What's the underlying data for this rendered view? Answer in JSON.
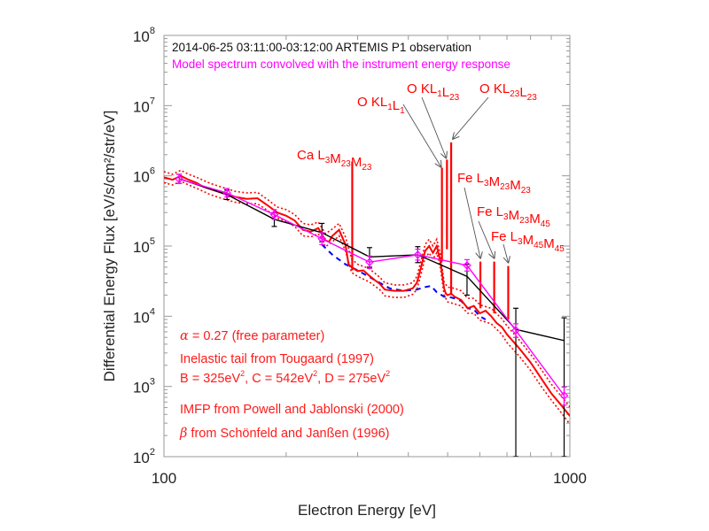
{
  "chart_data": {
    "type": "line",
    "title": "2014-06-25 03:11:00-03:12:00 ARTEMIS P1 observation",
    "subtitle": "Model spectrum convolved with the instrument energy response",
    "xlabel": "Electron Energy [eV]",
    "ylabel": "Differential Energy Flux [eV/s/cm²/str/eV]",
    "xscale": "log",
    "yscale": "log",
    "xlim": [
      100,
      1000
    ],
    "ylim": [
      100,
      100000000
    ],
    "grid": false,
    "x_ticks": [
      {
        "value": 100,
        "label": "100"
      },
      {
        "value": 1000,
        "label": "1000"
      }
    ],
    "y_ticks": [
      {
        "value": 100,
        "base": "10",
        "exp": "2"
      },
      {
        "value": 1000,
        "base": "10",
        "exp": "3"
      },
      {
        "value": 10000,
        "base": "10",
        "exp": "4"
      },
      {
        "value": 100000,
        "base": "10",
        "exp": "5"
      },
      {
        "value": 1000000,
        "base": "10",
        "exp": "6"
      },
      {
        "value": 10000000,
        "base": "10",
        "exp": "7"
      },
      {
        "value": 100000000,
        "base": "10",
        "exp": "8"
      }
    ],
    "colors": {
      "observation": "#000000",
      "model_convolved": "#ff00ff",
      "model": "#ff0000",
      "model_bounds": "#ff0000",
      "background": "#0000ff",
      "annotations": "#ff0000"
    },
    "series": [
      {
        "name": "ARTEMIS P1 observation",
        "style": "line-errorbar",
        "x": [
          109,
          143,
          187,
          245,
          321,
          422,
          558,
          736,
          968
        ],
        "y": [
          910000,
          540000,
          240000,
          155000,
          70000,
          75000,
          37000,
          6500,
          4500
        ],
        "err_low": [
          780000,
          460000,
          190000,
          115000,
          50000,
          58000,
          20000,
          100,
          100
        ],
        "err_high": [
          1050000,
          630000,
          300000,
          210000,
          95000,
          98000,
          55000,
          13000,
          9500
        ]
      },
      {
        "name": "Model spectrum convolved with the instrument energy response",
        "style": "line-diamond-errorbar",
        "x": [
          109,
          143,
          187,
          245,
          321,
          422,
          558,
          736,
          968
        ],
        "y": [
          900000,
          570000,
          280000,
          127000,
          59000,
          75000,
          53000,
          6300,
          740
        ],
        "err_low": [
          780000,
          500000,
          240000,
          105000,
          48000,
          63000,
          44000,
          5000,
          540
        ],
        "err_high": [
          1050000,
          660000,
          330000,
          155000,
          72000,
          90000,
          64000,
          7800,
          980
        ]
      },
      {
        "name": "Model spectrum",
        "style": "solid",
        "x": [
          100,
          105,
          110,
          115,
          120,
          125,
          130,
          140,
          150,
          160,
          170,
          180,
          190,
          200,
          210,
          220,
          230,
          240,
          250,
          255,
          260,
          270,
          280,
          285,
          290,
          300,
          310,
          320,
          330,
          340,
          350,
          370,
          390,
          410,
          420,
          430,
          440,
          450,
          460,
          470,
          480,
          490,
          495,
          500,
          510,
          520,
          540,
          560,
          580,
          600,
          620,
          640,
          660,
          680,
          700,
          750,
          800,
          850,
          900,
          950,
          1000
        ],
        "y": [
          950000,
          880000,
          1000000,
          880000,
          800000,
          700000,
          650000,
          560000,
          500000,
          470000,
          480000,
          380000,
          300000,
          270000,
          230000,
          170000,
          160000,
          180000,
          120000,
          115000,
          140000,
          170000,
          105000,
          55000,
          50000,
          44000,
          45000,
          38000,
          33000,
          29000,
          24000,
          23000,
          23000,
          25000,
          30000,
          50000,
          85000,
          100000,
          80000,
          100000,
          60000,
          25000,
          21000,
          20000,
          21000,
          19000,
          17000,
          13000,
          14000,
          11000,
          12000,
          10000,
          8000,
          7000,
          5500,
          3500,
          2200,
          1300,
          800,
          550,
          380
        ]
      },
      {
        "name": "Model upper bound",
        "style": "dotted",
        "x": [
          100,
          105,
          110,
          115,
          120,
          130,
          140,
          150,
          160,
          170,
          180,
          190,
          200,
          210,
          220,
          230,
          240,
          250,
          260,
          270,
          280,
          290,
          300,
          320,
          340,
          350,
          370,
          390,
          410,
          420,
          430,
          440,
          450,
          460,
          470,
          480,
          490,
          500,
          520,
          540,
          560,
          580,
          600,
          640,
          680,
          700,
          750,
          800,
          850,
          900,
          950,
          1000
        ],
        "y": [
          1150000,
          1050000,
          1200000,
          1050000,
          960000,
          780000,
          680000,
          600000,
          570000,
          580000,
          460000,
          360000,
          330000,
          280000,
          210000,
          200000,
          220000,
          150000,
          175000,
          210000,
          135000,
          65000,
          55000,
          48000,
          36000,
          30000,
          28000,
          28000,
          30000,
          37000,
          62000,
          105000,
          125000,
          100000,
          125000,
          75000,
          31000,
          26000,
          25000,
          23000,
          18000,
          18000,
          14500,
          13000,
          9200,
          7300,
          4600,
          2900,
          1750,
          1080,
          740,
          510
        ]
      },
      {
        "name": "Model lower bound",
        "style": "dotted",
        "x": [
          100,
          105,
          110,
          115,
          120,
          130,
          140,
          150,
          160,
          170,
          180,
          190,
          200,
          210,
          220,
          230,
          240,
          250,
          260,
          270,
          280,
          290,
          300,
          320,
          340,
          350,
          370,
          390,
          410,
          420,
          430,
          440,
          450,
          460,
          470,
          480,
          490,
          500,
          520,
          540,
          560,
          580,
          600,
          640,
          680,
          700,
          750,
          800,
          850,
          900,
          950,
          1000
        ],
        "y": [
          800000,
          740000,
          840000,
          740000,
          670000,
          540000,
          470000,
          420000,
          400000,
          400000,
          320000,
          250000,
          225000,
          190000,
          140000,
          135000,
          150000,
          98000,
          115000,
          140000,
          85000,
          42000,
          37000,
          31000,
          24000,
          19500,
          18500,
          18500,
          20500,
          24000,
          40000,
          68000,
          80000,
          65000,
          80000,
          48000,
          20000,
          16000,
          15000,
          14000,
          11000,
          11000,
          8800,
          7800,
          5500,
          4200,
          2700,
          1700,
          1000,
          640,
          430,
          290
        ]
      },
      {
        "name": "Background (inelastic tail)",
        "style": "dashed",
        "x": [
          245,
          260,
          280,
          300,
          330,
          360,
          390,
          420,
          440,
          455,
          470,
          490,
          500,
          520,
          540,
          560,
          580,
          600,
          620
        ],
        "y": [
          105000,
          75000,
          55000,
          45000,
          33000,
          25000,
          23000,
          24000,
          26000,
          27000,
          22000,
          19000,
          19000,
          18000,
          16500,
          13000,
          12500,
          10000,
          9000
        ]
      },
      {
        "name": "Emission lines",
        "style": "spikes",
        "x": [
          291,
          484,
          498,
          510,
          602,
          651,
          705
        ],
        "y": [
          1600000,
          1300000,
          1700000,
          3000000,
          60000,
          60000,
          52000
        ],
        "base": [
          45000,
          60000,
          90000,
          20000,
          13000,
          11000,
          9000
        ]
      }
    ],
    "line_labels": [
      {
        "name": "ca-l3m23m23",
        "element": "Ca L",
        "sub1": "3",
        "mid1": "M",
        "sub2": "23",
        "mid2": "M",
        "sub3": "23",
        "line_index": 0
      },
      {
        "name": "o-kl1l1",
        "element": "O KL",
        "sub1": "1",
        "mid1": "L",
        "sub2": "1",
        "mid2": "",
        "sub3": "",
        "line_index": 1
      },
      {
        "name": "o-kl1l23",
        "element": "O KL",
        "sub1": "1",
        "mid1": "L",
        "sub2": "23",
        "mid2": "",
        "sub3": "",
        "line_index": 2
      },
      {
        "name": "o-kl23l23",
        "element": "O KL",
        "sub1": "23",
        "mid1": "L",
        "sub2": "23",
        "mid2": "",
        "sub3": "",
        "line_index": 3
      },
      {
        "name": "fe-l3m23m23",
        "element": "Fe L",
        "sub1": "3",
        "mid1": "M",
        "sub2": "23",
        "mid2": "M",
        "sub3": "23",
        "line_index": 4
      },
      {
        "name": "fe-l3m23m45",
        "element": "Fe L",
        "sub1": "3",
        "mid1": "M",
        "sub2": "23",
        "mid2": "M",
        "sub3": "45",
        "line_index": 5
      },
      {
        "name": "fe-l3m45m45",
        "element": "Fe L",
        "sub1": "3",
        "mid1": "M",
        "sub2": "45",
        "mid2": "M",
        "sub3": "45",
        "line_index": 6
      }
    ],
    "annotations": {
      "alpha_symbol": "α",
      "alpha_text": " =  0.27 (free parameter)",
      "tail": "Inelastic tail from Tougaard (1997)",
      "params": [
        {
          "text": "B = 325eV",
          "sup": "2",
          "sep": ", "
        },
        {
          "text": "C = 542eV",
          "sup": "2",
          "sep": ", "
        },
        {
          "text": "D = 275eV",
          "sup": "2",
          "sep": ""
        }
      ],
      "imfp": "IMFP from Powell and Jablonski (2000)",
      "beta_symbol": "β",
      "beta_text": " from Schönfeld and Janßen (1996)"
    }
  }
}
